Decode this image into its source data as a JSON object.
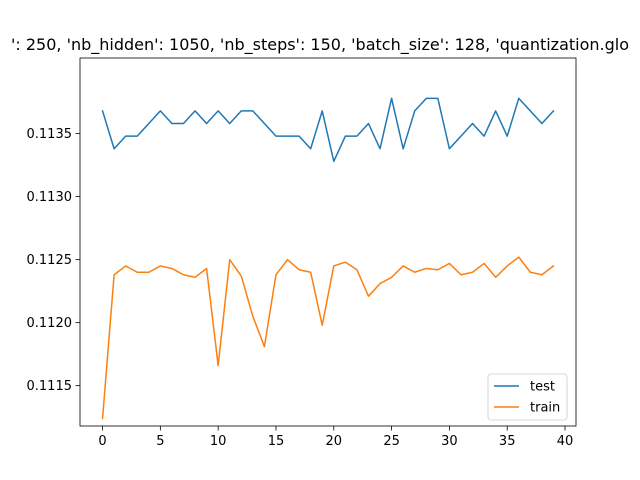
{
  "chart_data": {
    "type": "line",
    "title": "': 250, 'nb_hidden': 1050, 'nb_steps': 150, 'batch_size': 128, 'quantization.glo",
    "xlabel": "",
    "ylabel": "",
    "xlim": [
      -1.95,
      40.95
    ],
    "ylim": [
      0.11118,
      0.1141
    ],
    "x_ticks": [
      0,
      5,
      10,
      15,
      20,
      25,
      30,
      35,
      40
    ],
    "y_ticks": [
      0.1115,
      0.112,
      0.1125,
      0.113,
      0.1135
    ],
    "y_tick_labels": [
      "0.1115",
      "0.1120",
      "0.1125",
      "0.1130",
      "0.1135"
    ],
    "grid": false,
    "legend_position": "lower-right",
    "x": [
      0,
      1,
      2,
      3,
      4,
      5,
      6,
      7,
      8,
      9,
      10,
      11,
      12,
      13,
      14,
      15,
      16,
      17,
      18,
      19,
      20,
      21,
      22,
      23,
      24,
      25,
      26,
      27,
      28,
      29,
      30,
      31,
      32,
      33,
      34,
      35,
      36,
      37,
      38,
      39
    ],
    "series": [
      {
        "name": "test",
        "color": "#1f77b4",
        "values": [
          0.11368,
          0.11338,
          0.11348,
          0.11348,
          0.11358,
          0.11368,
          0.11358,
          0.11358,
          0.11368,
          0.11358,
          0.11368,
          0.11358,
          0.11368,
          0.11368,
          0.11358,
          0.11348,
          0.11348,
          0.11348,
          0.11338,
          0.11368,
          0.11328,
          0.11348,
          0.11348,
          0.11358,
          0.11338,
          0.11378,
          0.11338,
          0.11368,
          0.11378,
          0.11378,
          0.11338,
          0.11348,
          0.11358,
          0.11348,
          0.11368,
          0.11348,
          0.11378,
          0.11368,
          0.11358,
          0.11368
        ]
      },
      {
        "name": "train",
        "color": "#ff7f0e",
        "values": [
          0.11124,
          0.11238,
          0.11245,
          0.1124,
          0.1124,
          0.11245,
          0.11243,
          0.11238,
          0.11236,
          0.11243,
          0.11166,
          0.1125,
          0.11237,
          0.11205,
          0.11181,
          0.11238,
          0.1125,
          0.11242,
          0.1124,
          0.11198,
          0.11245,
          0.11248,
          0.11242,
          0.11221,
          0.11231,
          0.11236,
          0.11245,
          0.1124,
          0.11243,
          0.11242,
          0.11247,
          0.11238,
          0.1124,
          0.11247,
          0.11236,
          0.11245,
          0.11252,
          0.1124,
          0.11238,
          0.11245
        ]
      }
    ]
  }
}
